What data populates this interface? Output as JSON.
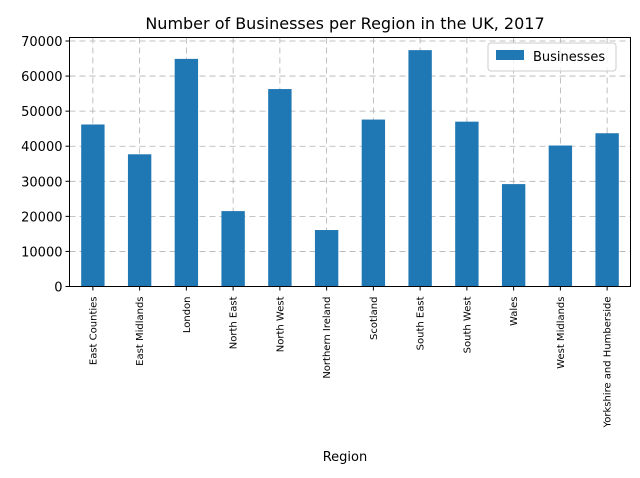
{
  "chart_data": {
    "type": "bar",
    "title": "Number of Businesses per Region in the UK, 2017",
    "xlabel": "Region",
    "ylabel": "",
    "categories": [
      "East Counties",
      "East Midlands",
      "London",
      "North East",
      "North West",
      "Northern Ireland",
      "Scotland",
      "South East",
      "South West",
      "Wales",
      "West Midlands",
      "Yorkshire and Humberside"
    ],
    "series": [
      {
        "name": "Businesses",
        "color": "#1f77b4",
        "values": [
          46200,
          37700,
          64900,
          21500,
          56300,
          16100,
          47600,
          67400,
          47000,
          29200,
          40200,
          43700
        ]
      }
    ],
    "ylim": [
      0,
      71000
    ],
    "yticks": [
      0,
      10000,
      20000,
      30000,
      40000,
      50000,
      60000,
      70000
    ],
    "grid": true,
    "grid_style": "dashed",
    "legend_position": "top-right"
  }
}
